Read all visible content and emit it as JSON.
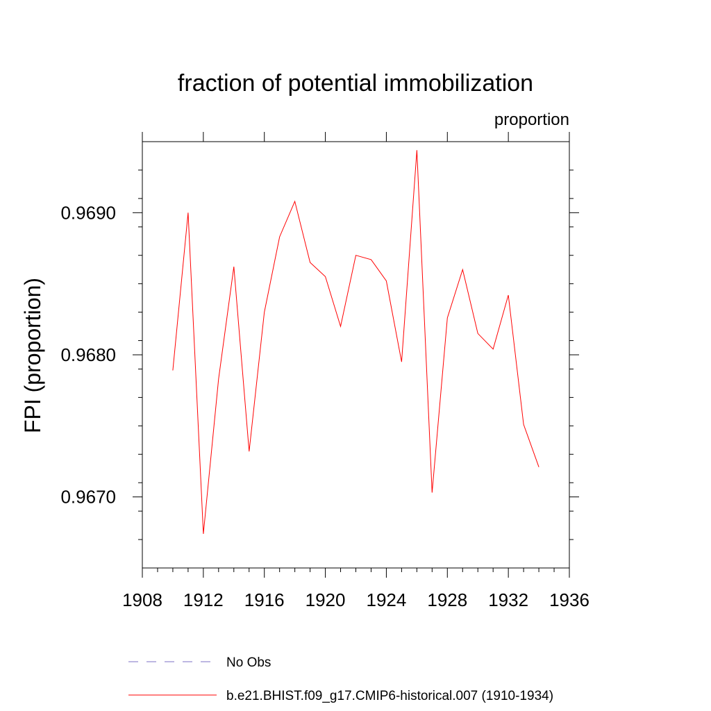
{
  "chart_data": {
    "type": "line",
    "title": "fraction of potential immobilization",
    "units_label": "proportion",
    "ylabel": "FPI  (proportion)",
    "xlabel": "",
    "xlim": [
      1908,
      1936
    ],
    "ylim": [
      0.9665,
      0.9695
    ],
    "x_ticks": [
      1908,
      1912,
      1916,
      1920,
      1924,
      1928,
      1932,
      1936
    ],
    "x_tick_labels": [
      "1908",
      "1912",
      "1916",
      "1920",
      "1924",
      "1928",
      "1932",
      "1936"
    ],
    "y_ticks": [
      0.967,
      0.968,
      0.969
    ],
    "y_tick_labels": [
      "0.9670",
      "0.9680",
      "0.9690"
    ],
    "grid": false,
    "legend_position": "bottom",
    "series": [
      {
        "name": "b.e21.BHIST.f09_g17.CMIP6-historical.007 (1910-1934)",
        "color": "#ff0000",
        "style": "solid",
        "x": [
          1910,
          1911,
          1912,
          1913,
          1914,
          1915,
          1916,
          1917,
          1918,
          1919,
          1920,
          1921,
          1922,
          1923,
          1924,
          1925,
          1926,
          1927,
          1928,
          1929,
          1930,
          1931,
          1932,
          1933,
          1934
        ],
        "y": [
          0.96789,
          0.969,
          0.96674,
          0.96783,
          0.96862,
          0.96732,
          0.9683,
          0.96883,
          0.96908,
          0.96865,
          0.96855,
          0.9682,
          0.9687,
          0.96867,
          0.96852,
          0.96795,
          0.96944,
          0.96703,
          0.96826,
          0.9686,
          0.96815,
          0.96804,
          0.96842,
          0.96751,
          0.96721
        ]
      }
    ],
    "legend": [
      {
        "label": "No Obs",
        "color": "#7b6fc4",
        "style": "dashed"
      },
      {
        "label": "b.e21.BHIST.f09_g17.CMIP6-historical.007 (1910-1934)",
        "color": "#ff0000",
        "style": "solid"
      }
    ]
  }
}
